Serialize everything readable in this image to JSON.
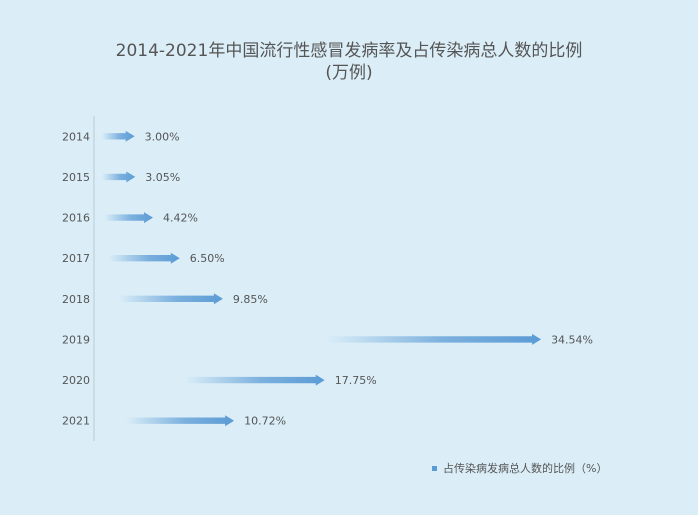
{
  "title": {
    "line1": "2014-2021年中国流行性感冒发病率及占传染病总人数的比例",
    "line2": "(万例)"
  },
  "colors": {
    "bar": "#5b9bd5",
    "text": "#555555",
    "background": "#dbeef8"
  },
  "chart_data": {
    "type": "bar",
    "orientation": "horizontal",
    "categories": [
      "2014",
      "2015",
      "2016",
      "2017",
      "2018",
      "2019",
      "2020",
      "2021"
    ],
    "series": [
      {
        "name": "占传染病发病总人数的比例（%）",
        "values": [
          3.0,
          3.05,
          4.42,
          6.5,
          9.85,
          34.54,
          17.75,
          10.72
        ],
        "labels": [
          "3.00%",
          "3.05%",
          "4.42%",
          "6.50%",
          "9.85%",
          "34.54%",
          "17.75%",
          "10.72%"
        ]
      }
    ],
    "xlim": [
      0,
      35
    ],
    "grid": false,
    "legend_position": "bottom-right"
  }
}
